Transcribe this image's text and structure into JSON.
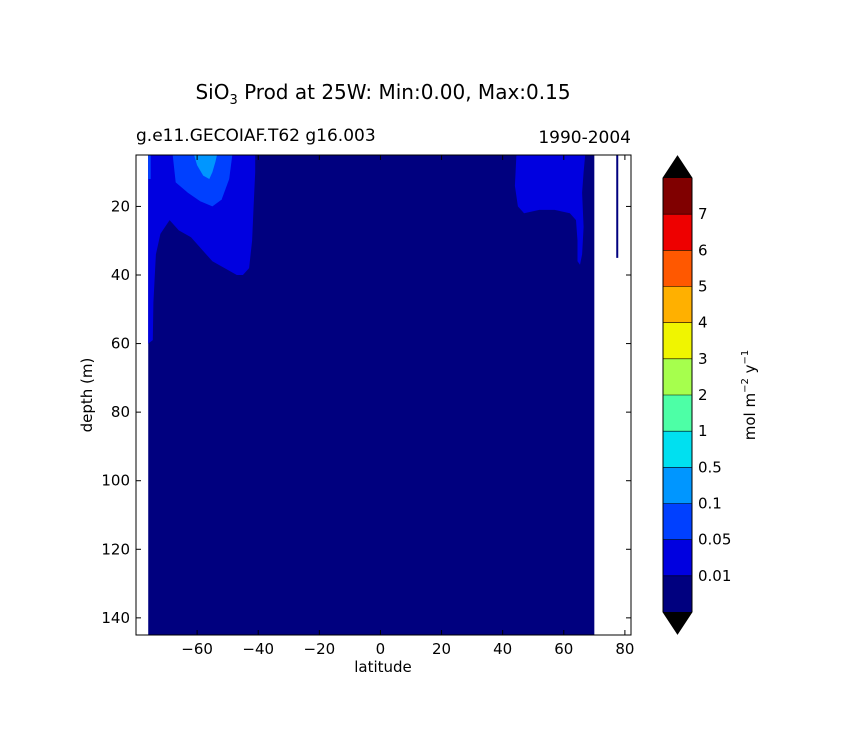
{
  "chart_data": {
    "type": "heatmap",
    "title_main": "SiO",
    "title_sub": "3",
    "title_rest": " Prod at 25W: Min:0.00, Max:0.15",
    "subtitle_left": "g.e11.GECOIAF.T62 g16.003",
    "subtitle_right": "1990-2004",
    "xlabel": "latitude",
    "ylabel": "depth (m)",
    "xlim": [
      -80,
      82
    ],
    "ylim": [
      145,
      5
    ],
    "x_ticks": [
      -60,
      -40,
      -20,
      0,
      20,
      40,
      60,
      80
    ],
    "y_ticks": [
      20,
      40,
      60,
      80,
      100,
      120,
      140
    ],
    "data_extent_lat": [
      -76,
      70
    ],
    "masked_column": {
      "lat": 77.5,
      "depth_to": 35
    },
    "regions": [
      {
        "level": "0.01-0.05",
        "lat": [
          -76,
          -75
        ],
        "depth": [
          5,
          60
        ]
      },
      {
        "level": "0.01-0.05",
        "lat": [
          -75,
          -40
        ],
        "depth": [
          5,
          60
        ]
      },
      {
        "level": "0.05-0.1",
        "lat": [
          -70,
          -48
        ],
        "depth": [
          5,
          20
        ]
      },
      {
        "level": "0.01-0.05",
        "lat": [
          44,
          67
        ],
        "depth": [
          5,
          37
        ]
      }
    ],
    "colorbar": {
      "label_main": "mol m",
      "label_sup1": "−2",
      "label_mid": " y",
      "label_sup2": "−1",
      "levels": [
        "0.01",
        "0.05",
        "0.1",
        "0.5",
        "1",
        "2",
        "3",
        "4",
        "5",
        "6",
        "7"
      ],
      "colors": [
        "#00007f",
        "#0000e0",
        "#0040ff",
        "#0096ff",
        "#00e0f0",
        "#4dffa6",
        "#a6ff4d",
        "#f0f500",
        "#ffb000",
        "#ff5800",
        "#ee0000",
        "#800000"
      ],
      "extend": "both"
    }
  }
}
